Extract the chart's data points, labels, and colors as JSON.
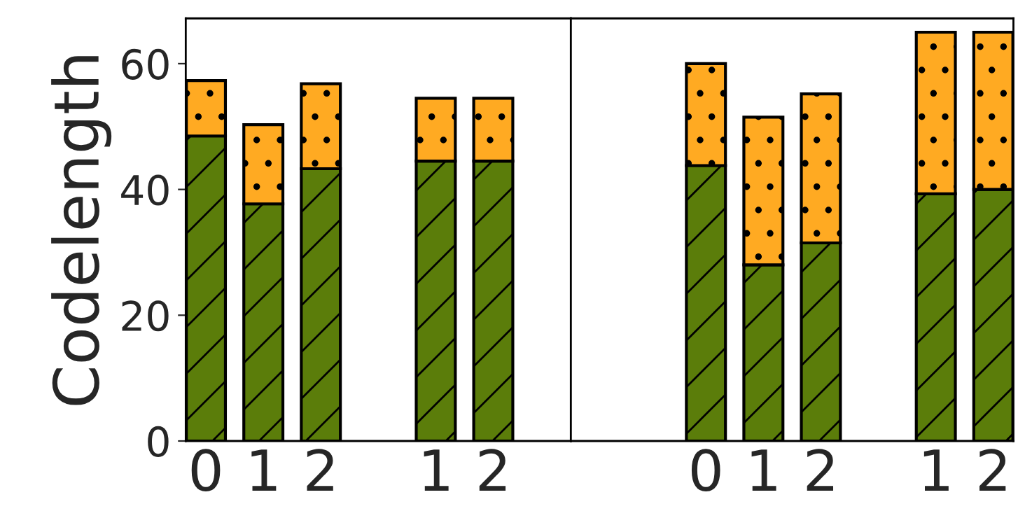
{
  "chart_data": [
    {
      "type": "bar",
      "stacked": true,
      "ylabel": "Codelength",
      "categories": [
        "0",
        "1",
        "2",
        null,
        "1",
        "2",
        null
      ],
      "ylim": [
        0,
        67.2
      ],
      "yticks": [
        0,
        20,
        40,
        60
      ],
      "grid": false,
      "legend": false,
      "series": [
        {
          "color": "#5b7d0a",
          "values": [
            48.5,
            37.7,
            43.3,
            null,
            44.5,
            44.5,
            null
          ]
        },
        {
          "color": "#ffaa22",
          "values": [
            8.8,
            12.6,
            13.5,
            null,
            10.0,
            10.0,
            null
          ]
        }
      ]
    },
    {
      "type": "bar",
      "stacked": true,
      "categories": [
        null,
        null,
        "0",
        "1",
        "2",
        null,
        "1",
        "2"
      ],
      "ylim": [
        0,
        67.2
      ],
      "yticks": [
        0,
        20,
        40,
        60
      ],
      "tick_labels": "x",
      "grid": false,
      "legend": false,
      "series": [
        {
          "color": "#5b7d0a",
          "values": [
            null,
            null,
            43.8,
            28.0,
            31.5,
            null,
            39.3,
            40.0
          ]
        },
        {
          "color": "#ffaa22",
          "values": [
            null,
            null,
            16.2,
            23.5,
            23.7,
            null,
            25.7,
            25.0
          ]
        }
      ]
    }
  ]
}
